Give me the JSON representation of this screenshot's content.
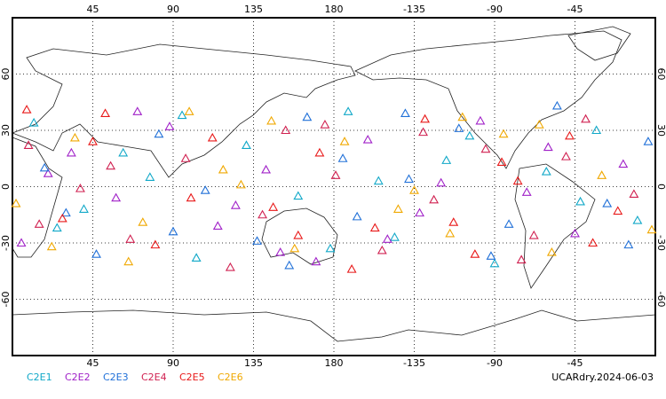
{
  "chart_data": {
    "type": "scatter",
    "xlim": [
      0,
      360
    ],
    "ylim": [
      -90,
      90
    ],
    "xticks": [
      45,
      90,
      135,
      180,
      {
        "value": 225,
        "label": "-135"
      },
      {
        "value": 270,
        "label": "-90"
      },
      {
        "value": 315,
        "label": "-45"
      }
    ],
    "yticks": [
      60,
      30,
      0,
      -30,
      -60
    ],
    "grid": true,
    "footer": "UCARdry.2024-06-03",
    "series": [
      {
        "name": "C2E1",
        "color": "#10a8c8",
        "x": [
          12,
          40,
          77,
          103,
          131,
          160,
          188,
          214,
          243,
          270,
          299,
          327,
          350,
          25,
          95,
          178,
          256,
          318,
          62,
          205
        ],
        "values": [
          34,
          -12,
          5,
          -38,
          22,
          -5,
          40,
          -27,
          14,
          -41,
          8,
          30,
          -18,
          -22,
          38,
          -33,
          27,
          -8,
          18,
          3
        ]
      },
      {
        "name": "C2E2",
        "color": "#a020c8",
        "x": [
          5,
          33,
          58,
          88,
          115,
          142,
          170,
          199,
          228,
          262,
          288,
          315,
          342,
          70,
          150,
          240,
          300,
          20,
          125,
          210
        ],
        "values": [
          -30,
          18,
          -6,
          32,
          -21,
          9,
          -40,
          25,
          -14,
          35,
          -3,
          -25,
          12,
          40,
          -35,
          2,
          21,
          7,
          -10,
          -28
        ]
      },
      {
        "name": "C2E3",
        "color": "#2070d8",
        "x": [
          18,
          47,
          82,
          108,
          137,
          165,
          193,
          222,
          250,
          278,
          305,
          333,
          356,
          90,
          185,
          268,
          30,
          155,
          220,
          345
        ],
        "values": [
          10,
          -36,
          28,
          -2,
          -29,
          37,
          -16,
          4,
          31,
          -20,
          43,
          -9,
          24,
          -24,
          15,
          -37,
          -14,
          -42,
          39,
          -31
        ]
      },
      {
        "name": "C2E4",
        "color": "#d02050",
        "x": [
          9,
          38,
          66,
          97,
          122,
          153,
          181,
          207,
          236,
          265,
          292,
          321,
          348,
          55,
          140,
          230,
          285,
          15,
          175,
          310
        ],
        "values": [
          22,
          -1,
          -28,
          15,
          -43,
          30,
          6,
          -34,
          -7,
          20,
          -26,
          36,
          -4,
          11,
          -15,
          29,
          -39,
          -20,
          33,
          16
        ]
      },
      {
        "name": "C2E5",
        "color": "#e81818",
        "x": [
          28,
          52,
          80,
          112,
          146,
          172,
          203,
          231,
          259,
          283,
          312,
          339,
          8,
          100,
          190,
          274,
          325,
          45,
          160,
          247
        ],
        "values": [
          -17,
          39,
          -31,
          26,
          -11,
          18,
          -22,
          36,
          -36,
          3,
          27,
          -13,
          41,
          -6,
          -44,
          13,
          -30,
          24,
          -26,
          -19
        ]
      },
      {
        "name": "C2E6",
        "color": "#f0a800",
        "x": [
          2,
          35,
          73,
          99,
          128,
          158,
          186,
          216,
          245,
          275,
          302,
          330,
          358,
          65,
          145,
          225,
          295,
          22,
          118,
          252
        ],
        "values": [
          -9,
          26,
          -19,
          40,
          1,
          -33,
          24,
          -12,
          -25,
          28,
          -35,
          6,
          -23,
          -40,
          35,
          -2,
          33,
          -32,
          9,
          37
        ]
      }
    ]
  }
}
